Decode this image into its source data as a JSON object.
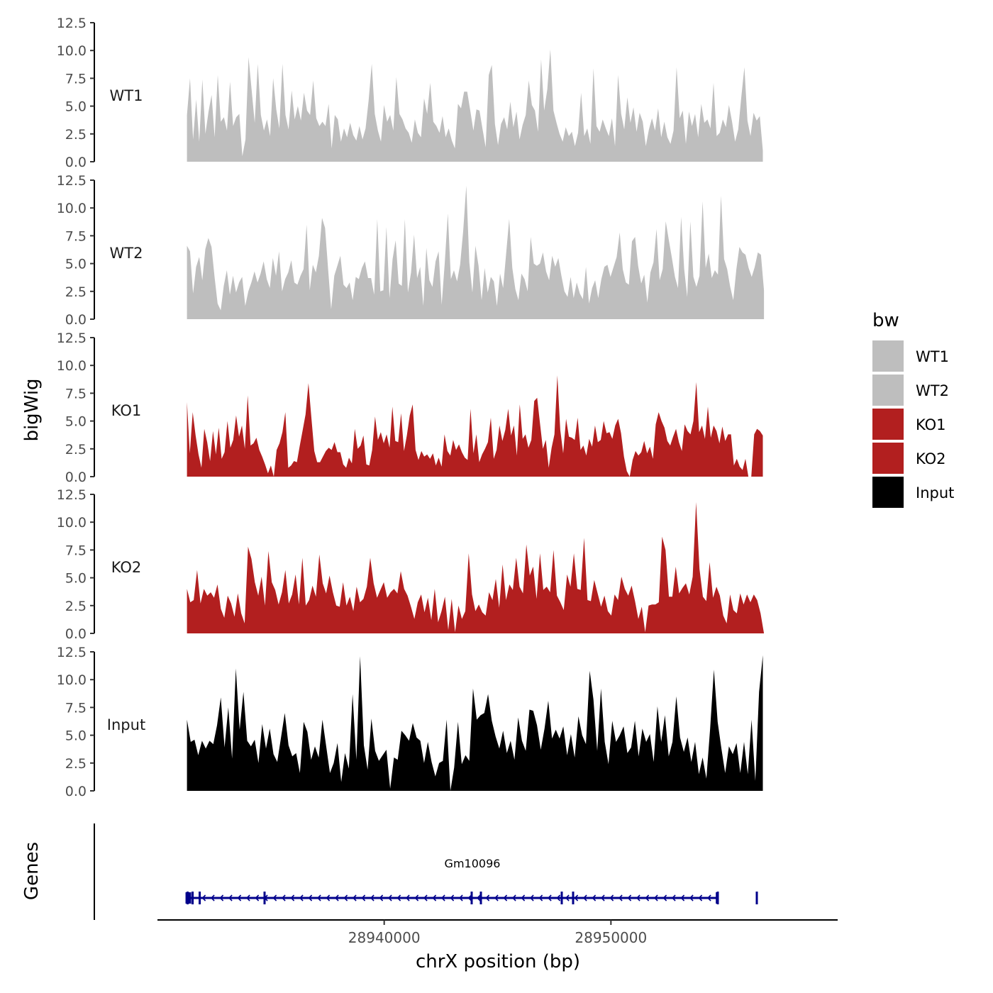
{
  "chart_data": {
    "type": "area",
    "ylabel": "bigWig",
    "xlabel": "chrX position (bp)",
    "genes_label": "Genes",
    "legend_title": "bw",
    "legend_position": "right",
    "ylim": [
      0,
      12.5
    ],
    "y_ticks": [
      "0.0",
      "2.5",
      "5.0",
      "7.5",
      "10.0",
      "12.5"
    ],
    "xlim": [
      28930000,
      28960000
    ],
    "x_ticks": [
      {
        "value": 28940000,
        "label": "28940000"
      },
      {
        "value": 28950000,
        "label": "28950000"
      }
    ],
    "colors": {
      "WT": "#bebebe",
      "KO": "#b21f1f",
      "Input": "#000000",
      "gene": "#00008b"
    },
    "tracks": [
      {
        "name": "WT1",
        "color": "#bebebe",
        "x_start": 28931300,
        "x_end": 28956700,
        "values": [
          4.2,
          7.5,
          2.0,
          5.6,
          1.8,
          7.4,
          2.5,
          4.5,
          6.0,
          2.2,
          7.8,
          3.6,
          4.0,
          2.8,
          7.2,
          3.2,
          4.0,
          4.3,
          0.5,
          2.0,
          9.4,
          6.5,
          3.5,
          8.8,
          4.2,
          2.8,
          3.8,
          2.3,
          7.5,
          4.7,
          3.0,
          8.8,
          4.2,
          2.9,
          6.4,
          3.8,
          5.0,
          3.7,
          6.2,
          4.6,
          4.2,
          7.3,
          3.9,
          3.2,
          3.6,
          3.2,
          5.2,
          1.2,
          4.2,
          3.8,
          1.8,
          3.0,
          2.2,
          3.5,
          2.4,
          1.9,
          3.2,
          2.0,
          3.0,
          5.5,
          8.8,
          4.3,
          2.8,
          1.8,
          5.1,
          3.6,
          4.2,
          2.8,
          7.6,
          4.3,
          3.8,
          3.0,
          2.6,
          1.7,
          3.8,
          2.6,
          2.2,
          5.7,
          4.3,
          7.1,
          3.6,
          3.2,
          2.6,
          4.1,
          2.2,
          3.0,
          1.9,
          1.2,
          5.2,
          4.8,
          6.3,
          6.3,
          4.6,
          2.8,
          4.7,
          4.6,
          2.9,
          1.3,
          7.8,
          8.7,
          3.4,
          1.5,
          3.4,
          4.0,
          2.9,
          5.4,
          3.1,
          4.5,
          2.0,
          3.3,
          4.2,
          7.3,
          5.1,
          4.6,
          2.7,
          9.2,
          4.6,
          6.5,
          10.1,
          4.6,
          3.5,
          2.5,
          1.8,
          3.1,
          2.3,
          2.7,
          1.4,
          2.6,
          6.2,
          2.3,
          3.0,
          1.6,
          8.4,
          3.2,
          2.7,
          3.8,
          3.0,
          2.3,
          3.9,
          1.4,
          7.8,
          4.3,
          2.9,
          5.8,
          3.5,
          4.9,
          2.7,
          4.4,
          3.6,
          1.4,
          2.9,
          3.9,
          2.8,
          4.8,
          2.2,
          3.6,
          2.2,
          1.6,
          2.8,
          8.5,
          3.9,
          4.6,
          1.6,
          4.5,
          3.2,
          4.3,
          2.2,
          5.2,
          3.5,
          3.8,
          3.0,
          7.1,
          2.3,
          2.6,
          3.8,
          3.1,
          5.1,
          3.6,
          1.8,
          2.9,
          5.8,
          8.5,
          3.7,
          2.3,
          4.4,
          3.7,
          4.1,
          1.0
        ]
      },
      {
        "name": "WT2",
        "color": "#bebebe",
        "x_start": 28931300,
        "x_end": 28956750,
        "values": [
          6.6,
          6.1,
          2.3,
          4.7,
          5.6,
          3.5,
          6.3,
          7.3,
          6.5,
          3.8,
          1.4,
          0.8,
          3.0,
          4.4,
          2.2,
          3.9,
          2.4,
          3.3,
          3.8,
          1.2,
          2.5,
          3.3,
          4.3,
          3.3,
          4.1,
          5.2,
          3.6,
          2.8,
          5.5,
          3.9,
          6.1,
          2.5,
          3.6,
          4.2,
          5.3,
          3.3,
          3.1,
          3.9,
          4.5,
          8.5,
          2.6,
          4.9,
          4.2,
          5.7,
          9.1,
          8.2,
          4.5,
          0.9,
          3.9,
          4.8,
          5.7,
          3.1,
          2.8,
          3.3,
          1.7,
          3.8,
          3.6,
          4.6,
          5.2,
          3.7,
          3.7,
          2.2,
          9.0,
          2.5,
          2.6,
          8.3,
          1.9,
          5.4,
          7.1,
          3.2,
          3.0,
          9.0,
          2.4,
          4.2,
          7.6,
          3.7,
          4.7,
          1.2,
          6.4,
          3.5,
          2.9,
          5.2,
          6.1,
          1.3,
          5.1,
          9.5,
          3.6,
          4.4,
          3.4,
          4.9,
          7.9,
          12.0,
          5.1,
          2.4,
          6.6,
          4.8,
          1.7,
          4.6,
          2.4,
          3.8,
          3.4,
          1.2,
          4.1,
          2.8,
          5.9,
          9.0,
          4.6,
          2.7,
          1.7,
          4.1,
          3.6,
          2.5,
          7.4,
          5.0,
          4.8,
          5.0,
          6.0,
          4.3,
          3.5,
          5.7,
          4.7,
          5.5,
          3.9,
          2.5,
          2.0,
          3.8,
          1.9,
          3.3,
          2.3,
          1.8,
          4.7,
          1.4,
          2.8,
          3.5,
          1.9,
          3.6,
          4.7,
          4.9,
          3.8,
          4.7,
          5.6,
          7.8,
          4.5,
          3.3,
          3.1,
          7.0,
          7.4,
          4.8,
          3.2,
          4.0,
          1.5,
          4.2,
          5.1,
          8.1,
          3.5,
          4.5,
          8.8,
          7.1,
          5.5,
          3.8,
          2.8,
          9.2,
          4.5,
          2.0,
          8.8,
          3.8,
          2.9,
          3.9,
          10.6,
          4.6,
          5.9,
          3.7,
          4.4,
          4.0,
          11.1,
          5.4,
          4.5,
          2.9,
          1.7,
          4.5,
          6.5,
          6.0,
          5.8,
          4.6,
          3.8,
          4.7,
          6.0,
          5.8,
          2.6
        ]
      },
      {
        "name": "KO1",
        "color": "#b21f1f",
        "x_start": 28931300,
        "x_end": 28956700,
        "values": [
          6.7,
          2.1,
          5.8,
          3.7,
          2.0,
          0.8,
          4.3,
          3.1,
          1.4,
          4.1,
          2.0,
          4.4,
          1.6,
          2.2,
          5.0,
          2.6,
          3.3,
          5.5,
          3.6,
          4.6,
          2.5,
          7.3,
          2.8,
          3.0,
          3.5,
          2.4,
          1.8,
          1.1,
          0.3,
          1.0,
          0.0,
          2.4,
          3.0,
          4.0,
          5.8,
          0.8,
          1.0,
          1.4,
          1.3,
          2.8,
          4.2,
          5.6,
          8.4,
          5.3,
          2.3,
          1.3,
          1.3,
          1.8,
          2.3,
          2.6,
          2.4,
          3.1,
          2.2,
          2.2,
          1.1,
          0.8,
          1.7,
          1.2,
          4.3,
          2.5,
          2.8,
          3.7,
          1.1,
          1.0,
          2.4,
          5.4,
          3.3,
          4.0,
          3.0,
          3.8,
          2.6,
          6.3,
          3.2,
          3.1,
          5.7,
          2.3,
          3.7,
          5.5,
          6.5,
          2.4,
          1.5,
          2.3,
          1.8,
          2.0,
          1.6,
          2.1,
          1.0,
          1.7,
          0.9,
          3.8,
          2.3,
          1.9,
          3.3,
          2.4,
          2.9,
          2.2,
          1.7,
          1.5,
          6.1,
          2.1,
          3.8,
          1.3,
          2.0,
          2.5,
          3.1,
          5.3,
          1.6,
          2.4,
          4.6,
          3.2,
          4.2,
          6.1,
          3.7,
          4.6,
          1.9,
          6.5,
          3.4,
          3.8,
          2.6,
          3.3,
          6.8,
          7.1,
          4.8,
          2.5,
          3.3,
          0.8,
          2.6,
          3.8,
          9.1,
          4.2,
          2.1,
          5.2,
          3.6,
          3.5,
          3.3,
          5.3,
          2.4,
          2.8,
          1.9,
          3.4,
          2.7,
          4.6,
          3.1,
          3.3,
          5.0,
          3.9,
          4.0,
          3.4,
          4.6,
          5.2,
          3.9,
          1.8,
          0.5,
          0.0,
          1.5,
          2.3,
          1.9,
          2.2,
          3.2,
          2.1,
          2.7,
          1.6,
          4.7,
          5.8,
          5.0,
          4.4,
          3.2,
          2.8,
          3.6,
          4.3,
          3.1,
          2.3,
          4.7,
          4.1,
          3.8,
          5.0,
          8.5,
          4.0,
          4.6,
          3.4,
          6.3,
          3.5,
          4.6,
          4.1,
          3.0,
          4.5,
          3.2,
          3.8,
          3.8,
          1.0,
          1.6,
          0.9,
          0.6,
          1.6,
          0.0,
          0.0,
          3.8,
          4.3,
          4.1,
          3.7
        ]
      },
      {
        "name": "KO2",
        "color": "#b21f1f",
        "x_start": 28931300,
        "x_end": 28956750,
        "values": [
          4.0,
          2.8,
          3.0,
          5.7,
          2.7,
          4.0,
          3.4,
          3.7,
          3.2,
          4.4,
          2.2,
          1.4,
          3.4,
          2.7,
          1.5,
          3.6,
          1.8,
          0.9,
          7.8,
          6.7,
          4.6,
          3.4,
          5.1,
          2.5,
          7.4,
          4.6,
          3.9,
          2.6,
          3.7,
          5.7,
          2.7,
          3.5,
          5.3,
          2.6,
          6.8,
          2.5,
          3.0,
          4.3,
          3.3,
          7.1,
          4.5,
          3.6,
          5.2,
          3.7,
          2.5,
          2.4,
          4.6,
          2.5,
          3.3,
          2.0,
          4.2,
          2.8,
          3.1,
          4.2,
          6.8,
          4.5,
          3.2,
          3.9,
          4.6,
          3.2,
          3.7,
          4.0,
          3.6,
          5.6,
          4.0,
          3.4,
          2.4,
          1.3,
          2.8,
          3.5,
          1.9,
          3.2,
          1.2,
          4.0,
          1.0,
          2.0,
          3.3,
          0.3,
          3.1,
          0.1,
          2.5,
          1.3,
          2.0,
          7.2,
          3.5,
          2.0,
          2.6,
          1.9,
          1.6,
          3.7,
          3.0,
          4.9,
          2.3,
          6.2,
          3.0,
          4.4,
          3.9,
          6.8,
          4.2,
          3.6,
          8.0,
          5.2,
          6.0,
          3.1,
          7.2,
          3.9,
          4.2,
          3.7,
          7.5,
          3.4,
          2.8,
          2.1,
          5.3,
          4.2,
          7.2,
          4.0,
          3.9,
          8.6,
          3.0,
          2.9,
          4.8,
          3.6,
          2.4,
          3.4,
          2.0,
          1.6,
          3.5,
          3.0,
          5.1,
          4.0,
          3.4,
          4.3,
          2.9,
          1.3,
          2.4,
          0.1,
          2.5,
          2.6,
          2.6,
          2.8,
          8.7,
          7.5,
          3.3,
          3.3,
          6.0,
          3.6,
          4.1,
          4.5,
          3.5,
          5.1,
          11.8,
          5.8,
          3.3,
          2.9,
          6.4,
          3.2,
          4.2,
          3.4,
          1.6,
          0.9,
          3.5,
          2.1,
          1.8,
          3.6,
          2.6,
          3.5,
          2.8,
          3.5,
          3.0,
          1.8,
          0.0
        ]
      },
      {
        "name": "Input",
        "color": "#000000",
        "x_start": 28931300,
        "x_end": 28956700,
        "values": [
          6.4,
          4.4,
          4.6,
          3.2,
          4.5,
          3.8,
          4.5,
          4.2,
          5.9,
          8.4,
          3.9,
          7.5,
          2.9,
          11.0,
          5.5,
          8.9,
          4.5,
          4.0,
          4.6,
          2.5,
          6.0,
          3.8,
          5.6,
          3.3,
          2.6,
          4.8,
          7.0,
          4.1,
          3.1,
          3.4,
          1.6,
          6.2,
          5.3,
          2.8,
          4.0,
          3.0,
          6.4,
          4.0,
          1.6,
          2.5,
          4.3,
          0.8,
          3.4,
          2.0,
          8.7,
          2.8,
          12.1,
          4.1,
          1.9,
          6.5,
          3.6,
          2.7,
          3.2,
          3.7,
          0.2,
          3.0,
          2.8,
          5.4,
          5.0,
          4.5,
          6.1,
          4.8,
          4.5,
          2.5,
          4.4,
          2.6,
          1.3,
          2.5,
          2.7,
          6.4,
          0.0,
          2.1,
          6.2,
          2.4,
          3.2,
          2.7,
          9.2,
          6.4,
          6.8,
          7.0,
          8.7,
          6.3,
          4.9,
          3.8,
          5.4,
          3.4,
          4.5,
          2.8,
          6.6,
          4.5,
          3.6,
          7.3,
          7.2,
          5.9,
          3.7,
          5.6,
          8.1,
          4.7,
          5.5,
          4.7,
          5.8,
          3.2,
          5.1,
          3.0,
          6.7,
          5.0,
          4.2,
          10.8,
          8.2,
          3.6,
          9.2,
          4.4,
          2.4,
          6.3,
          4.4,
          5.0,
          5.8,
          3.4,
          3.9,
          6.3,
          3.1,
          5.6,
          4.4,
          5.1,
          2.6,
          7.6,
          4.4,
          6.8,
          3.1,
          4.4,
          8.5,
          4.8,
          3.5,
          4.8,
          2.6,
          4.4,
          1.5,
          3.0,
          1.1,
          5.6,
          10.9,
          6.2,
          3.8,
          1.6,
          4.0,
          3.3,
          4.3,
          1.6,
          4.4,
          1.5,
          6.4,
          0.9,
          8.9,
          12.2
        ]
      }
    ],
    "gene": {
      "name": "Gm10096",
      "start": 28931300,
      "end": 28954750,
      "strand": "-"
    }
  }
}
